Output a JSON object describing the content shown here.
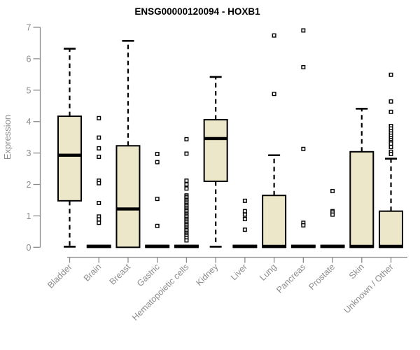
{
  "colors": {
    "box_fill": "#EDE7C9",
    "box_stroke": "#000000",
    "median": "#000000",
    "whisker": "#000000",
    "outlier_fill": "#FFFFFF",
    "axis": "#8C8C8C",
    "title": "#000000",
    "background": "#FFFFFF"
  },
  "chart_data": {
    "type": "boxplot",
    "title": "ENSG00000120094 - HOXB1",
    "ylabel": "Expression",
    "xlabel": "",
    "ylim": [
      0,
      7
    ],
    "y_ticks": [
      0,
      1,
      2,
      3,
      4,
      5,
      6,
      7
    ],
    "grid": false,
    "legend": false,
    "x_label_rotation_deg": 45,
    "categories": [
      "Bladder",
      "Brain",
      "Breast",
      "Gastric",
      "Hematopoietic cells",
      "Kidney",
      "Liver",
      "Lung",
      "Pancreas",
      "Prostate",
      "Skin",
      "Unknown / Other"
    ],
    "series": [
      {
        "name": "Bladder",
        "whisker_low": 0.02,
        "q1": 1.48,
        "median": 2.93,
        "q3": 4.17,
        "whisker_high": 6.32,
        "outliers": []
      },
      {
        "name": "Brain",
        "whisker_low": 0,
        "q1": 0,
        "median": 0.03,
        "q3": 0.06,
        "whisker_high": 0.06,
        "outliers": [
          4.11,
          3.49,
          3.15,
          2.88,
          2.12,
          2.04,
          1.41,
          0.98,
          0.89,
          0.78
        ]
      },
      {
        "name": "Breast",
        "whisker_low": 0,
        "q1": 0,
        "median": 1.22,
        "q3": 3.23,
        "whisker_high": 6.57,
        "outliers": []
      },
      {
        "name": "Gastric",
        "whisker_low": 0,
        "q1": 0,
        "median": 0.03,
        "q3": 0.06,
        "whisker_high": 0.06,
        "outliers": [
          2.97,
          2.71,
          1.54,
          0.68
        ]
      },
      {
        "name": "Hematopoietic cells",
        "whisker_low": 0,
        "q1": 0,
        "median": 0.03,
        "q3": 0.06,
        "whisker_high": 0.06,
        "outliers": [
          3.44,
          2.98,
          2.12,
          2.0,
          1.87,
          1.65,
          1.6,
          1.55,
          1.5,
          1.45,
          1.4,
          1.35,
          1.3,
          1.25,
          1.2,
          1.15,
          1.1,
          1.05,
          1.0,
          0.95,
          0.9,
          0.85,
          0.8,
          0.75,
          0.7,
          0.65,
          0.6,
          0.55,
          0.5,
          0.45,
          0.4,
          0.35,
          0.3,
          0.22
        ]
      },
      {
        "name": "Kidney",
        "whisker_low": 0.02,
        "q1": 2.1,
        "median": 3.46,
        "q3": 4.06,
        "whisker_high": 5.42,
        "outliers": []
      },
      {
        "name": "Liver",
        "whisker_low": 0,
        "q1": 0,
        "median": 0.03,
        "q3": 0.06,
        "whisker_high": 0.06,
        "outliers": [
          1.48,
          1.15,
          1.04,
          0.9,
          0.56
        ]
      },
      {
        "name": "Lung",
        "whisker_low": 0,
        "q1": 0,
        "median": 0.03,
        "q3": 1.65,
        "whisker_high": 2.93,
        "outliers": [
          6.74,
          4.88
        ]
      },
      {
        "name": "Pancreas",
        "whisker_low": 0,
        "q1": 0,
        "median": 0.03,
        "q3": 0.06,
        "whisker_high": 0.06,
        "outliers": [
          6.9,
          5.73,
          3.13,
          0.78,
          0.7
        ]
      },
      {
        "name": "Prostate",
        "whisker_low": 0,
        "q1": 0,
        "median": 0.03,
        "q3": 0.06,
        "whisker_high": 0.06,
        "outliers": [
          1.79,
          1.15,
          1.11,
          1.04
        ]
      },
      {
        "name": "Skin",
        "whisker_low": 0,
        "q1": 0,
        "median": 0.03,
        "q3": 3.04,
        "whisker_high": 4.41,
        "outliers": []
      },
      {
        "name": "Unknown / Other",
        "whisker_low": 0,
        "q1": 0,
        "median": 0.03,
        "q3": 1.15,
        "whisker_high": 2.82,
        "outliers": [
          5.49,
          4.64,
          4.31,
          3.86,
          3.78,
          3.7,
          3.62,
          3.55,
          3.48,
          3.41,
          3.35,
          3.3,
          3.19,
          3.04,
          2.97
        ]
      }
    ]
  }
}
